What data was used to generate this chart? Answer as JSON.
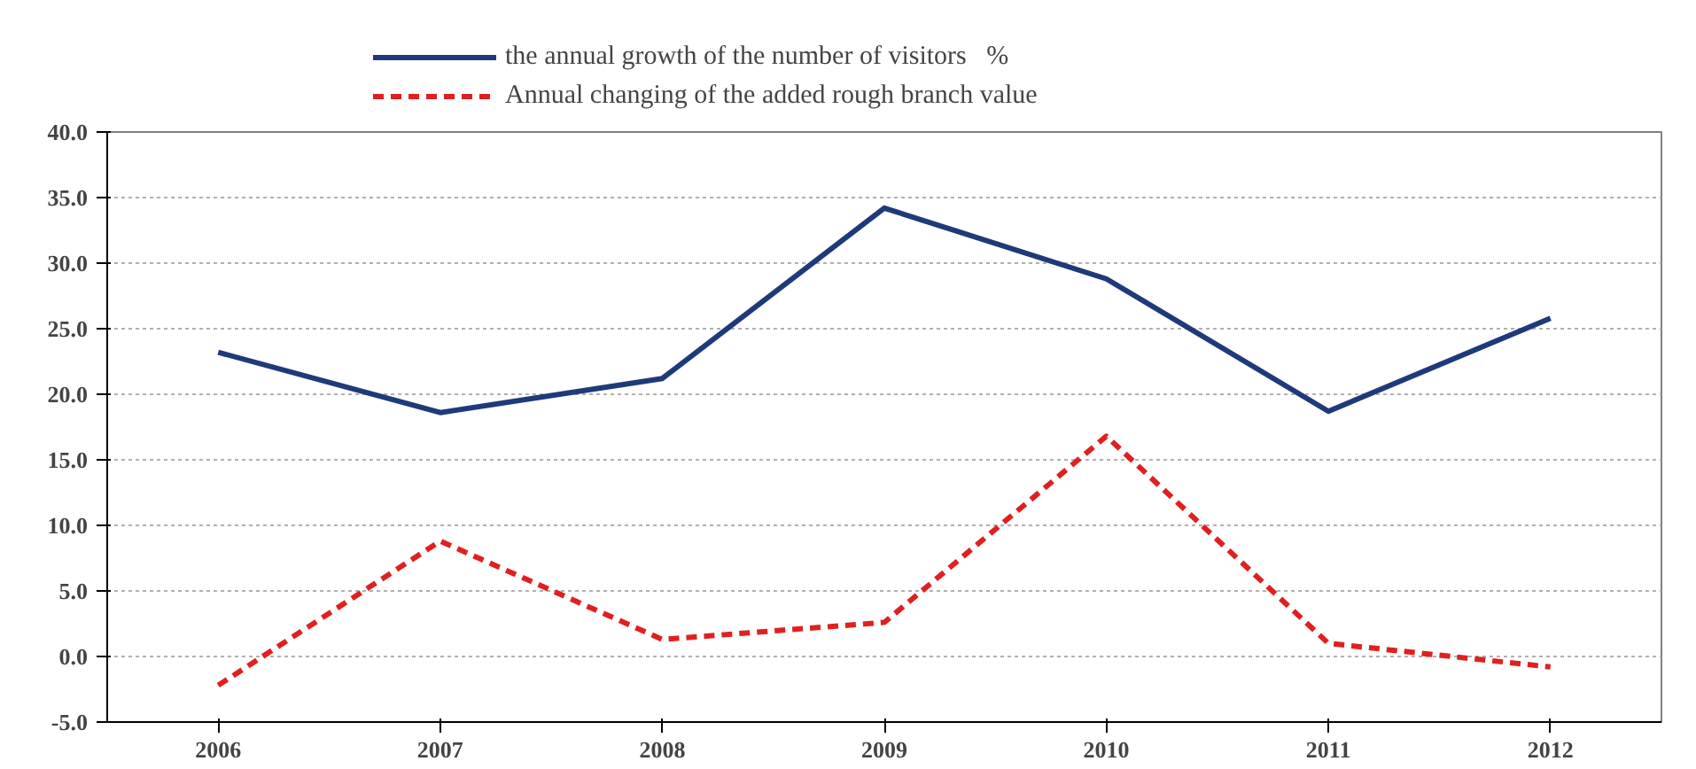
{
  "chart_data": {
    "type": "line",
    "categories": [
      "2006",
      "2007",
      "2008",
      "2009",
      "2010",
      "2011",
      "2012"
    ],
    "series": [
      {
        "name": "the annual growth of the number of visitors   %",
        "color": "#1f3a7a",
        "line_style": "solid",
        "values": [
          23.2,
          18.6,
          21.2,
          34.2,
          28.8,
          18.7,
          25.8
        ]
      },
      {
        "name": "Annual changing of the added rough branch value",
        "color": "#e02020",
        "line_style": "dashed",
        "values": [
          -2.2,
          8.8,
          1.3,
          2.6,
          16.8,
          1.0,
          -0.8
        ]
      }
    ],
    "ylim": [
      -5,
      40
    ],
    "yticks": [
      {
        "value": -5,
        "label": "-5.0"
      },
      {
        "value": 0,
        "label": "0.0"
      },
      {
        "value": 5,
        "label": "5.0"
      },
      {
        "value": 10,
        "label": "10.0"
      },
      {
        "value": 15,
        "label": "15.0"
      },
      {
        "value": 20,
        "label": "20.0"
      },
      {
        "value": 25,
        "label": "25.0"
      },
      {
        "value": 30,
        "label": "30.0"
      },
      {
        "value": 35,
        "label": "35.0"
      },
      {
        "value": 40,
        "label": "40.0"
      }
    ],
    "grid": "y",
    "legend": "top",
    "marker": "none"
  }
}
